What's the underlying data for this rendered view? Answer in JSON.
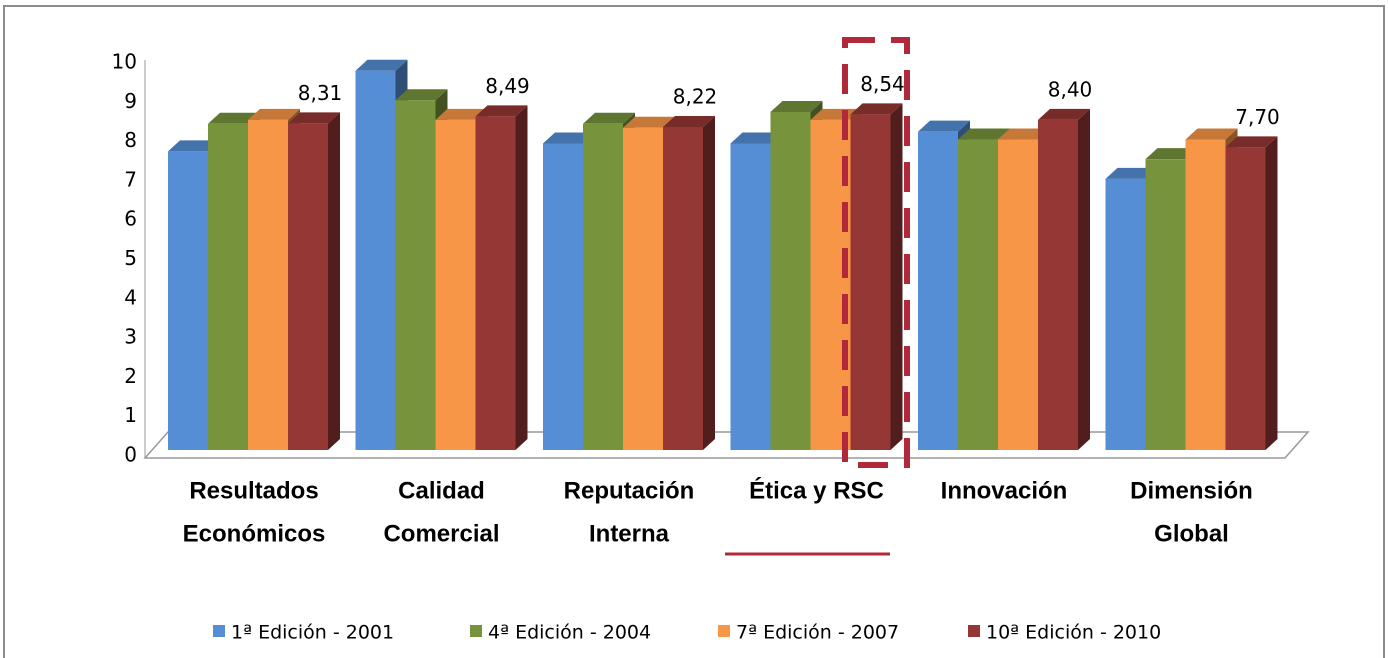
{
  "chart_data": {
    "type": "bar3d",
    "categories": [
      [
        "Resultados",
        "Económicos"
      ],
      [
        "Calidad",
        "Comercial"
      ],
      [
        "Reputación",
        "Interna"
      ],
      [
        "Ética y RSC"
      ],
      [
        "Innovación"
      ],
      [
        "Dimensión",
        "Global"
      ]
    ],
    "series": [
      {
        "name": "1ª Edición - 2001",
        "color": "#558ed5",
        "values": [
          7.6,
          9.65,
          7.8,
          7.8,
          8.1,
          6.9
        ]
      },
      {
        "name": "4ª Edición - 2004",
        "color": "#77933c",
        "values": [
          8.3,
          8.9,
          8.3,
          8.6,
          7.9,
          7.4
        ]
      },
      {
        "name": "7ª Edición - 2007",
        "color": "#f79646",
        "values": [
          8.4,
          8.4,
          8.2,
          8.4,
          7.9,
          7.9
        ]
      },
      {
        "name": "10ª Edición - 2010",
        "color": "#953735",
        "values": [
          8.31,
          8.49,
          8.22,
          8.54,
          8.4,
          7.7
        ],
        "value_labels": [
          "8,31",
          "8,49",
          "8,22",
          "8,54",
          "8,40",
          "7,70"
        ]
      }
    ],
    "ylim": [
      0,
      10
    ],
    "yticks": [
      0,
      1,
      2,
      3,
      4,
      5,
      6,
      7,
      8,
      9,
      10
    ],
    "legend": "bottom"
  }
}
